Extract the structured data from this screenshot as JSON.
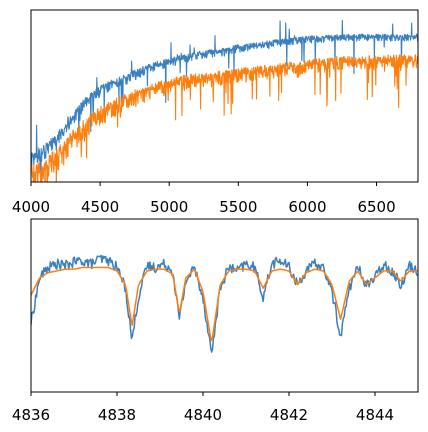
{
  "chart_data": [
    {
      "type": "line",
      "title": "",
      "xlabel": "",
      "ylabel": "",
      "xlim": [
        4000,
        6800
      ],
      "ylim": [
        0,
        1
      ],
      "grid": false,
      "legend": "none",
      "xticks": [
        4000,
        4500,
        5000,
        5500,
        6000,
        6500
      ],
      "xtick_labels": [
        "4000",
        "4500",
        "5000",
        "5500",
        "6000",
        "6500"
      ],
      "yticks": [],
      "series": [
        {
          "color": "#3a7fbf",
          "x": [
            4000,
            4100,
            4200,
            4300,
            4400,
            4500,
            4600,
            4700,
            4800,
            4900,
            5000,
            5100,
            5200,
            5300,
            5400,
            5500,
            5600,
            5700,
            5800,
            5900,
            6000,
            6100,
            6200,
            6300,
            6400,
            6500,
            6600,
            6700,
            6800
          ],
          "y": [
            0.17,
            0.22,
            0.3,
            0.4,
            0.5,
            0.56,
            0.6,
            0.63,
            0.67,
            0.7,
            0.72,
            0.74,
            0.76,
            0.77,
            0.78,
            0.8,
            0.81,
            0.82,
            0.83,
            0.84,
            0.85,
            0.85,
            0.86,
            0.86,
            0.86,
            0.86,
            0.86,
            0.86,
            0.86
          ]
        },
        {
          "color": "#ff7f0e",
          "x": [
            4000,
            4100,
            4200,
            4300,
            4400,
            4500,
            4600,
            4700,
            4800,
            4900,
            5000,
            5100,
            5200,
            5300,
            5400,
            5500,
            5600,
            5700,
            5800,
            5900,
            6000,
            6100,
            6200,
            6300,
            6400,
            6500,
            6600,
            6700,
            6800
          ],
          "y": [
            0.1,
            0.14,
            0.21,
            0.3,
            0.38,
            0.44,
            0.48,
            0.52,
            0.55,
            0.58,
            0.6,
            0.62,
            0.63,
            0.64,
            0.65,
            0.66,
            0.67,
            0.68,
            0.69,
            0.7,
            0.71,
            0.72,
            0.73,
            0.73,
            0.73,
            0.74,
            0.74,
            0.74,
            0.74
          ]
        }
      ]
    },
    {
      "type": "line",
      "title": "",
      "xlabel": "",
      "ylabel": "",
      "xlim": [
        4836,
        4845
      ],
      "ylim": [
        0,
        1
      ],
      "grid": false,
      "legend": "none",
      "xticks": [
        4836,
        4838,
        4840,
        4842,
        4844
      ],
      "xtick_labels": [
        "4836",
        "4838",
        "4840",
        "4842",
        "4844"
      ],
      "yticks": [],
      "series": [
        {
          "color": "#3a7fbf",
          "x": [
            4836.0,
            4836.2,
            4836.4,
            4836.6,
            4836.8,
            4837.0,
            4837.2,
            4837.4,
            4837.6,
            4837.8,
            4838.0,
            4838.2,
            4838.35,
            4838.5,
            4838.7,
            4838.9,
            4839.1,
            4839.3,
            4839.45,
            4839.6,
            4839.8,
            4840.0,
            4840.2,
            4840.4,
            4840.6,
            4840.8,
            4841.0,
            4841.2,
            4841.4,
            4841.6,
            4841.8,
            4842.0,
            4842.2,
            4842.4,
            4842.6,
            4842.8,
            4843.0,
            4843.2,
            4843.4,
            4843.6,
            4843.8,
            4844.0,
            4844.2,
            4844.4,
            4844.6,
            4844.8,
            4845.0
          ],
          "y": [
            0.4,
            0.66,
            0.72,
            0.74,
            0.73,
            0.75,
            0.76,
            0.74,
            0.77,
            0.76,
            0.72,
            0.6,
            0.3,
            0.55,
            0.73,
            0.72,
            0.74,
            0.7,
            0.42,
            0.64,
            0.72,
            0.55,
            0.22,
            0.6,
            0.72,
            0.7,
            0.74,
            0.72,
            0.55,
            0.74,
            0.76,
            0.72,
            0.62,
            0.7,
            0.74,
            0.72,
            0.58,
            0.32,
            0.6,
            0.72,
            0.62,
            0.66,
            0.74,
            0.7,
            0.62,
            0.73,
            0.7
          ]
        },
        {
          "color": "#ff7f0e",
          "x": [
            4836.0,
            4836.2,
            4836.4,
            4836.6,
            4836.8,
            4837.0,
            4837.2,
            4837.4,
            4837.6,
            4837.8,
            4838.0,
            4838.2,
            4838.35,
            4838.5,
            4838.7,
            4838.9,
            4839.1,
            4839.3,
            4839.45,
            4839.6,
            4839.8,
            4840.0,
            4840.2,
            4840.4,
            4840.6,
            4840.8,
            4841.0,
            4841.2,
            4841.4,
            4841.6,
            4841.8,
            4842.0,
            4842.2,
            4842.4,
            4842.6,
            4842.8,
            4843.0,
            4843.2,
            4843.4,
            4843.6,
            4843.8,
            4844.0,
            4844.2,
            4844.4,
            4844.6,
            4844.8,
            4845.0
          ],
          "y": [
            0.56,
            0.66,
            0.69,
            0.7,
            0.71,
            0.71,
            0.72,
            0.72,
            0.72,
            0.72,
            0.7,
            0.62,
            0.38,
            0.62,
            0.7,
            0.71,
            0.71,
            0.68,
            0.45,
            0.66,
            0.71,
            0.58,
            0.28,
            0.62,
            0.7,
            0.71,
            0.71,
            0.7,
            0.6,
            0.7,
            0.71,
            0.7,
            0.62,
            0.69,
            0.71,
            0.7,
            0.62,
            0.42,
            0.64,
            0.7,
            0.62,
            0.66,
            0.7,
            0.7,
            0.64,
            0.7,
            0.7
          ]
        }
      ]
    }
  ]
}
